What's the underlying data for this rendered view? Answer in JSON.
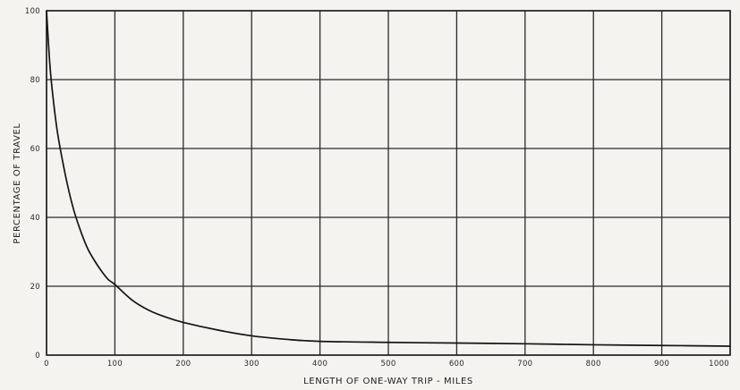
{
  "chart_data": {
    "type": "line",
    "xlabel": "LENGTH OF ONE-WAY TRIP - MILES",
    "ylabel": "PERCENTAGE OF TRAVEL",
    "xlim": [
      0,
      1000
    ],
    "ylim": [
      0,
      100
    ],
    "xticks": [
      "0",
      "100",
      "200",
      "300",
      "400",
      "500",
      "600",
      "700",
      "800",
      "900",
      "1000"
    ],
    "yticks": [
      "0",
      "20",
      "40",
      "60",
      "80",
      "100"
    ],
    "grid": true,
    "series": [
      {
        "x": [
          0,
          5,
          10,
          15,
          20,
          30,
          40,
          50,
          60,
          70,
          80,
          90,
          100,
          125,
          150,
          175,
          200,
          250,
          300,
          350,
          400,
          500,
          600,
          700,
          800,
          900,
          1000
        ],
        "y": [
          100,
          84,
          74,
          66,
          60,
          50,
          42,
          36,
          31,
          27.5,
          24.5,
          22,
          20.5,
          16,
          13,
          11,
          9.5,
          7.3,
          5.6,
          4.6,
          4.0,
          3.7,
          3.5,
          3.3,
          3.0,
          2.8,
          2.6
        ]
      }
    ]
  }
}
